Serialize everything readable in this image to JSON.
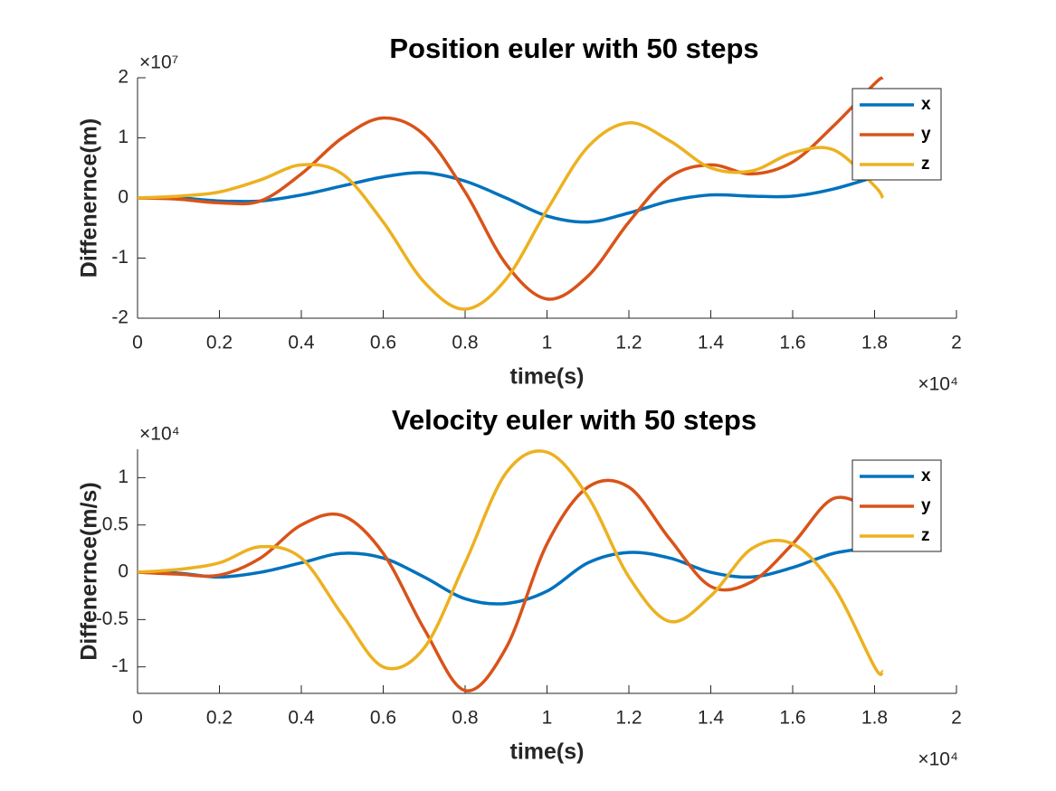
{
  "chart_data": [
    {
      "type": "line",
      "title": "Position euler with 50 steps",
      "xlabel": "time(s)",
      "ylabel": "Diffenernce(m)",
      "x_exponent_label": "×10⁴",
      "y_exponent_label": "×10⁷",
      "x": [
        0,
        0.1,
        0.2,
        0.3,
        0.4,
        0.5,
        0.6,
        0.7,
        0.8,
        0.9,
        1.0,
        1.1,
        1.2,
        1.3,
        1.4,
        1.5,
        1.6,
        1.7,
        1.8,
        1.82
      ],
      "series": [
        {
          "name": "x",
          "color": "#0072BD",
          "values": [
            0,
            0,
            -0.05,
            -0.05,
            0.05,
            0.2,
            0.35,
            0.42,
            0.28,
            0,
            -0.3,
            -0.4,
            -0.25,
            -0.05,
            0.05,
            0.03,
            0.03,
            0.15,
            0.35,
            0.4
          ]
        },
        {
          "name": "y",
          "color": "#D95319",
          "values": [
            0,
            -0.02,
            -0.08,
            -0.05,
            0.4,
            1.0,
            1.33,
            1.05,
            0.1,
            -1.1,
            -1.68,
            -1.3,
            -0.4,
            0.35,
            0.55,
            0.4,
            0.6,
            1.2,
            1.9,
            2.0
          ]
        },
        {
          "name": "z",
          "color": "#EDB120",
          "values": [
            0,
            0.03,
            0.1,
            0.3,
            0.55,
            0.4,
            -0.4,
            -1.4,
            -1.85,
            -1.35,
            -0.2,
            0.85,
            1.25,
            0.95,
            0.5,
            0.45,
            0.75,
            0.8,
            0.2,
            0.0
          ]
        }
      ],
      "xlim": [
        0,
        2
      ],
      "ylim": [
        -2,
        2
      ],
      "xticks": [
        0,
        0.2,
        0.4,
        0.6,
        0.8,
        1,
        1.2,
        1.4,
        1.6,
        1.8,
        2
      ],
      "yticks": [
        -2,
        -1,
        0,
        1,
        2
      ],
      "legend": "northeast"
    },
    {
      "type": "line",
      "title": "Velocity euler with 50 steps",
      "xlabel": "time(s)",
      "ylabel": "Diffenernce(m/s)",
      "x_exponent_label": "×10⁴",
      "y_exponent_label": "×10⁴",
      "x": [
        0,
        0.1,
        0.2,
        0.3,
        0.4,
        0.5,
        0.6,
        0.7,
        0.8,
        0.9,
        1.0,
        1.1,
        1.2,
        1.3,
        1.4,
        1.5,
        1.6,
        1.7,
        1.8,
        1.82
      ],
      "series": [
        {
          "name": "x",
          "color": "#0072BD",
          "values": [
            0,
            -0.01,
            -0.05,
            0,
            0.1,
            0.2,
            0.15,
            -0.05,
            -0.28,
            -0.33,
            -0.2,
            0.1,
            0.21,
            0.15,
            0,
            -0.05,
            0.05,
            0.2,
            0.26,
            0.27
          ]
        },
        {
          "name": "y",
          "color": "#D95319",
          "values": [
            0,
            -0.02,
            -0.03,
            0.15,
            0.5,
            0.6,
            0.2,
            -0.6,
            -1.25,
            -0.8,
            0.3,
            0.9,
            0.9,
            0.35,
            -0.15,
            -0.1,
            0.3,
            0.78,
            0.65,
            0.62
          ]
        },
        {
          "name": "z",
          "color": "#EDB120",
          "values": [
            0,
            0.03,
            0.1,
            0.27,
            0.15,
            -0.45,
            -1.0,
            -0.8,
            0.1,
            1.05,
            1.27,
            0.8,
            -0.05,
            -0.52,
            -0.25,
            0.25,
            0.3,
            -0.15,
            -1.0,
            -1.05
          ]
        }
      ],
      "xlim": [
        0,
        2
      ],
      "ylim": [
        -1.28,
        1.3
      ],
      "xticks": [
        0,
        0.2,
        0.4,
        0.6,
        0.8,
        1,
        1.2,
        1.4,
        1.6,
        1.8,
        2
      ],
      "yticks": [
        -1,
        -0.5,
        0,
        0.5,
        1
      ],
      "legend": "northeast"
    }
  ]
}
